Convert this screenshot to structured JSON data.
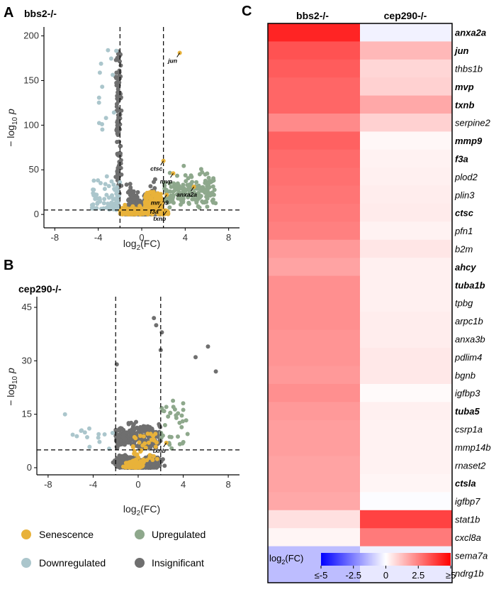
{
  "panels": {
    "a": "A",
    "b": "B",
    "c": "C"
  },
  "colors": {
    "senescence": "#e8b23a",
    "downregulated": "#abc6cc",
    "upregulated": "#8ea88c",
    "insignificant": "#6f6f6f",
    "heat_low": "#0000ff",
    "heat_mid": "#ffffff",
    "heat_high": "#ff0000"
  },
  "legend": {
    "senescence": "Senescence",
    "upregulated": "Upregulated",
    "downregulated": "Downregulated",
    "insignificant": "Insignificant"
  },
  "chart_data": [
    {
      "type": "scatter",
      "title": "bbs2-/-",
      "xlabel": "log2(FC)",
      "ylabel": "−log10 p",
      "xlim": [
        -9,
        9
      ],
      "ylim": [
        -15,
        210
      ],
      "xticks": [
        -8,
        -4,
        0,
        4,
        8
      ],
      "yticks": [
        0,
        50,
        100,
        150,
        200
      ],
      "thresholds": {
        "x": [
          -2,
          2
        ],
        "y": 5
      },
      "grid": false,
      "annotations": [
        {
          "label": "jun",
          "x": 3.5,
          "y": 181
        },
        {
          "label": "ctsc",
          "x": 2.0,
          "y": 60
        },
        {
          "label": "mvp",
          "x": 2.9,
          "y": 46
        },
        {
          "label": "anxa2a",
          "x": 4.8,
          "y": 31
        },
        {
          "label": "mmp9",
          "x": 2.3,
          "y": 22
        },
        {
          "label": "f3a",
          "x": 1.8,
          "y": 12
        },
        {
          "label": "txnb",
          "x": 2.3,
          "y": 4
        }
      ]
    },
    {
      "type": "scatter",
      "title": "cep290-/-",
      "xlabel": "log2(FC)",
      "ylabel": "−log10 p",
      "xlim": [
        -9,
        9
      ],
      "ylim": [
        -2,
        48
      ],
      "xticks": [
        -8,
        -4,
        0,
        4,
        8
      ],
      "yticks": [
        0,
        15,
        30,
        45
      ],
      "thresholds": {
        "x": [
          -2,
          2
        ],
        "y": 5
      },
      "grid": false,
      "annotations": [
        {
          "label": "txnb",
          "x": 2.5,
          "y": 7
        }
      ]
    },
    {
      "type": "heatmap",
      "columns": [
        "bbs2-/-",
        "cep290-/-"
      ],
      "legend_title": "log2(FC)",
      "color_range": [
        -5,
        5
      ],
      "colorbar_ticks": [
        "≤-5",
        "-2.5",
        "0",
        "2.5",
        "≥5"
      ],
      "rows": [
        {
          "gene": "anxa2a",
          "bold": true,
          "values": [
            4.3,
            -0.25
          ]
        },
        {
          "gene": "jun",
          "bold": true,
          "values": [
            3.4,
            1.4
          ]
        },
        {
          "gene": "thbs1b",
          "bold": false,
          "values": [
            3.2,
            0.8
          ]
        },
        {
          "gene": "mvp",
          "bold": true,
          "values": [
            3.0,
            0.9
          ]
        },
        {
          "gene": "txnb",
          "bold": true,
          "values": [
            3.0,
            1.7
          ]
        },
        {
          "gene": "serpine2",
          "bold": false,
          "values": [
            2.3,
            0.9
          ]
        },
        {
          "gene": "mmp9",
          "bold": true,
          "values": [
            3.1,
            0.15
          ]
        },
        {
          "gene": "f3a",
          "bold": true,
          "values": [
            2.9,
            0.25
          ]
        },
        {
          "gene": "plod2",
          "bold": false,
          "values": [
            2.8,
            0.3
          ]
        },
        {
          "gene": "plin3",
          "bold": false,
          "values": [
            2.7,
            0.35
          ]
        },
        {
          "gene": "ctsc",
          "bold": true,
          "values": [
            2.6,
            0.4
          ]
        },
        {
          "gene": "pfn1",
          "bold": false,
          "values": [
            2.5,
            0.25
          ]
        },
        {
          "gene": "b2m",
          "bold": false,
          "values": [
            2.0,
            0.5
          ]
        },
        {
          "gene": "ahcy",
          "bold": true,
          "values": [
            1.8,
            0.3
          ]
        },
        {
          "gene": "tuba1b",
          "bold": true,
          "values": [
            2.2,
            0.3
          ]
        },
        {
          "gene": "tpbg",
          "bold": false,
          "values": [
            2.2,
            0.3
          ]
        },
        {
          "gene": "arpc1b",
          "bold": false,
          "values": [
            2.2,
            0.35
          ]
        },
        {
          "gene": "anxa3b",
          "bold": false,
          "values": [
            2.1,
            0.35
          ]
        },
        {
          "gene": "pdlim4",
          "bold": false,
          "values": [
            2.1,
            0.45
          ]
        },
        {
          "gene": "bgnb",
          "bold": false,
          "values": [
            2.0,
            0.45
          ]
        },
        {
          "gene": "igfbp3",
          "bold": false,
          "values": [
            2.2,
            0.1
          ]
        },
        {
          "gene": "tuba5",
          "bold": true,
          "values": [
            2.0,
            0.3
          ]
        },
        {
          "gene": "csrp1a",
          "bold": false,
          "values": [
            1.9,
            0.25
          ]
        },
        {
          "gene": "mmp14b",
          "bold": false,
          "values": [
            1.9,
            0.25
          ]
        },
        {
          "gene": "rnaset2",
          "bold": false,
          "values": [
            1.8,
            0.25
          ]
        },
        {
          "gene": "ctsla",
          "bold": true,
          "values": [
            1.8,
            0.2
          ]
        },
        {
          "gene": "igfbp7",
          "bold": false,
          "values": [
            1.7,
            -0.05
          ]
        },
        {
          "gene": "stat1b",
          "bold": false,
          "values": [
            0.6,
            3.7
          ]
        },
        {
          "gene": "cxcl8a",
          "bold": false,
          "values": [
            0.2,
            2.6
          ]
        },
        {
          "gene": "sema7a",
          "bold": false,
          "values": [
            -1.3,
            -0.3
          ]
        },
        {
          "gene": "ndrg1b",
          "bold": false,
          "values": [
            -1.3,
            -0.45
          ]
        }
      ]
    }
  ]
}
